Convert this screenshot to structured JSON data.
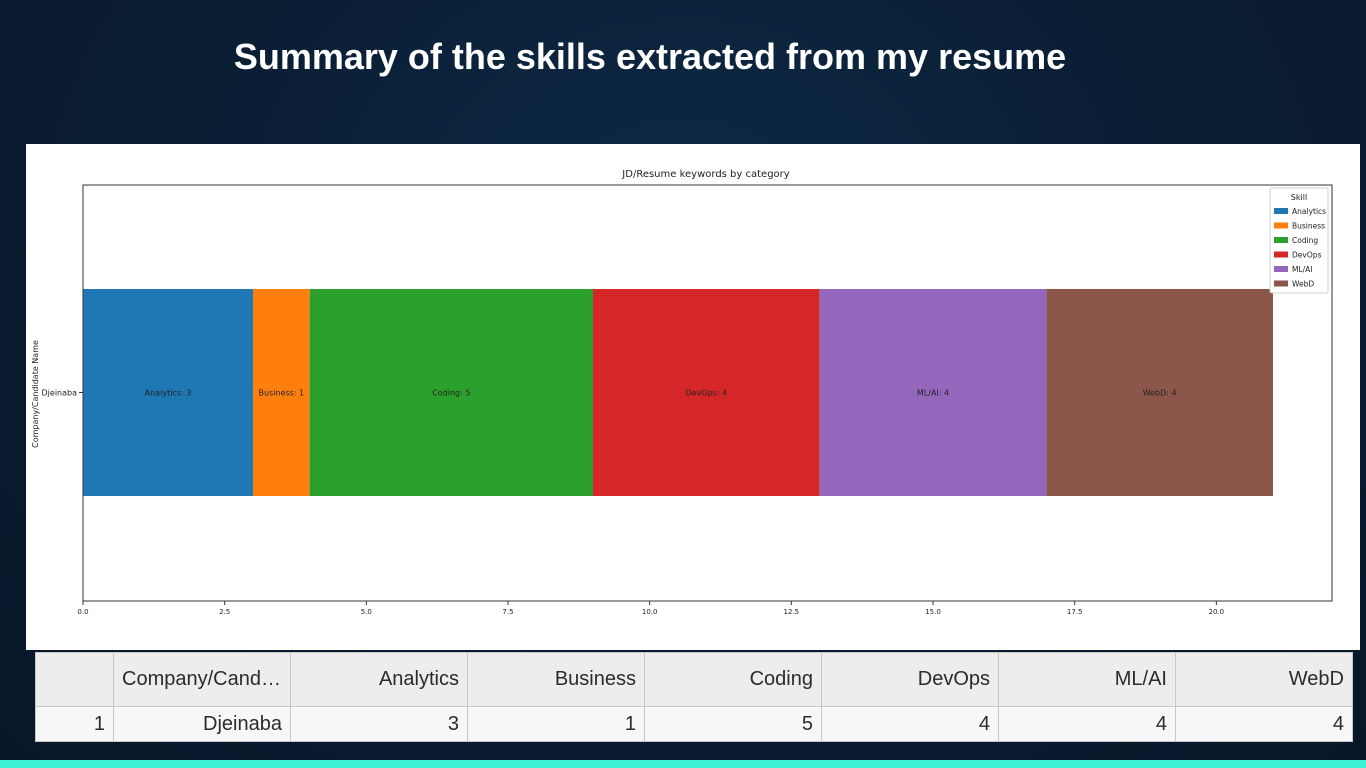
{
  "slide": {
    "title": "Summary of the skills extracted from my resume"
  },
  "chart_data": {
    "type": "bar",
    "orientation": "horizontal-stacked",
    "title": "JD/Resume keywords by category",
    "xlabel": "",
    "ylabel": "Company/Candidate Name",
    "categories": [
      "Djeinaba"
    ],
    "series": [
      {
        "name": "Analytics",
        "values": [
          3
        ],
        "color": "#1f77b4",
        "label": "Analytics: 3"
      },
      {
        "name": "Business",
        "values": [
          1
        ],
        "color": "#ff7f0e",
        "label": "Business: 1"
      },
      {
        "name": "Coding",
        "values": [
          5
        ],
        "color": "#2ca02c",
        "label": "Coding: 5"
      },
      {
        "name": "DevOps",
        "values": [
          4
        ],
        "color": "#d62728",
        "label": "DevOps: 4"
      },
      {
        "name": "ML/AI",
        "values": [
          4
        ],
        "color": "#9467bd",
        "label": "ML/AI: 4"
      },
      {
        "name": "WebD",
        "values": [
          4
        ],
        "color": "#8c564b",
        "label": "WebD: 4"
      }
    ],
    "xlim": [
      0,
      22
    ],
    "xticks": [
      "0.0",
      "2.5",
      "5.0",
      "7.5",
      "10.0",
      "12.5",
      "15.0",
      "17.5",
      "20.0"
    ],
    "legend": {
      "title": "Skill",
      "placement": "top-right"
    },
    "grid": false
  },
  "table": {
    "headers": [
      "",
      "Company/Candidat...",
      "Analytics",
      "Business",
      "Coding",
      "DevOps",
      "ML/AI",
      "WebD"
    ],
    "rows": [
      [
        "1",
        "Djeinaba",
        "3",
        "1",
        "5",
        "4",
        "4",
        "4"
      ]
    ]
  }
}
